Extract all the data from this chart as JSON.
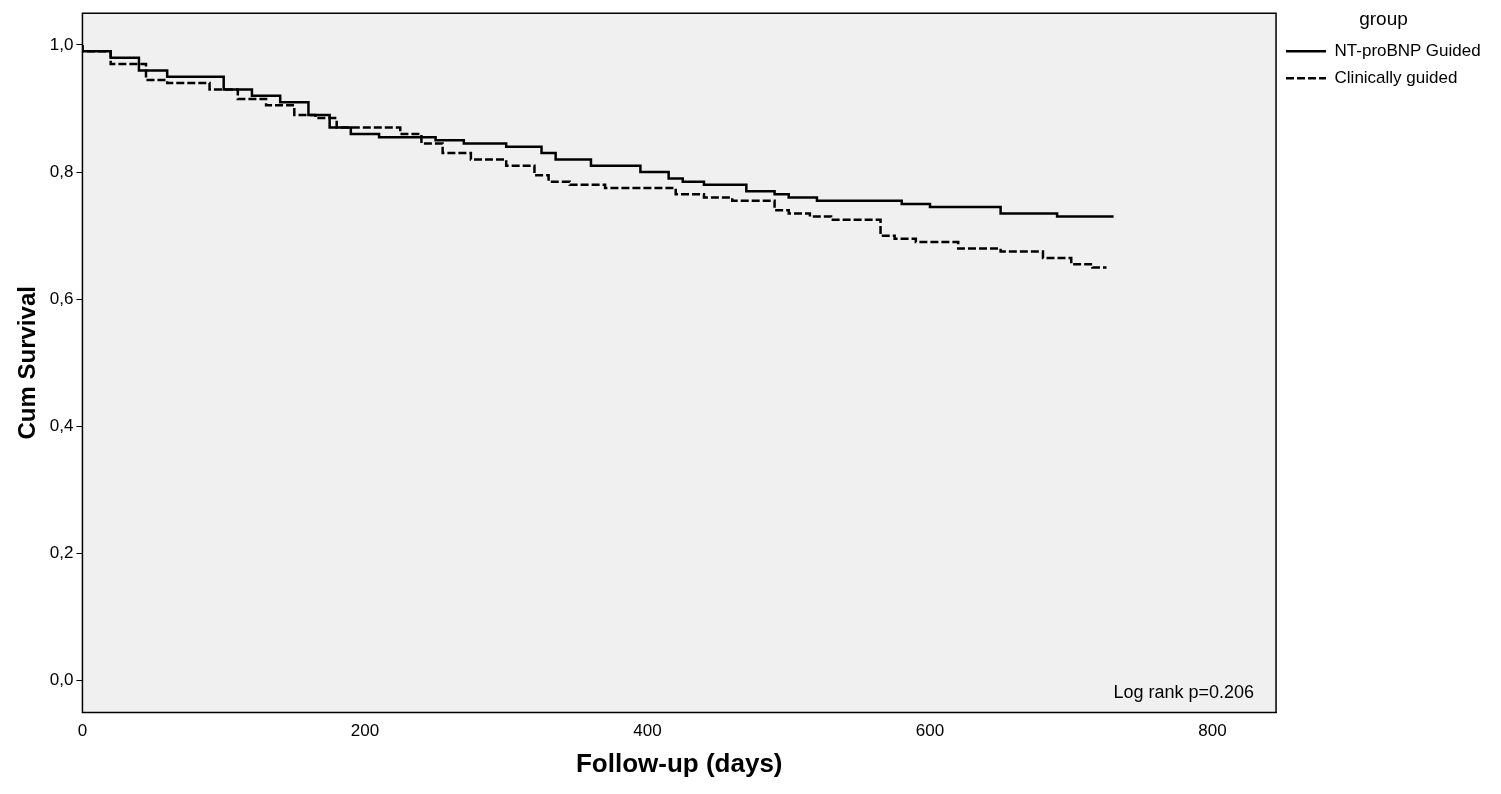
{
  "chart_data": {
    "type": "step",
    "xlabel": "Follow-up (days)",
    "ylabel": "Cum Survival",
    "legend_title": "group",
    "legend": "top right",
    "grid": false,
    "marker": "none",
    "xlim": [
      0,
      845
    ],
    "xticks": [
      0,
      200,
      400,
      600,
      800
    ],
    "ylim": [
      -0.05,
      1.05
    ],
    "yticks": [
      {
        "value": 0,
        "label": "0,0"
      },
      {
        "value": 0.2,
        "label": "0,2"
      },
      {
        "value": 0.4,
        "label": "0,4"
      },
      {
        "value": 0.6,
        "label": "0,6"
      },
      {
        "value": 0.8,
        "label": "0,8"
      },
      {
        "value": 1,
        "label": "1,0"
      }
    ],
    "annotations": [
      "Log rank p=0.206"
    ],
    "series": [
      {
        "name": "NT-proBNP Guided",
        "color": "#000000",
        "line_style": "solid",
        "x": [
          0,
          20,
          40,
          60,
          100,
          120,
          140,
          160,
          175,
          190,
          210,
          250,
          270,
          300,
          325,
          335,
          360,
          395,
          415,
          425,
          440,
          470,
          490,
          500,
          520,
          580,
          600,
          650,
          690,
          705,
          730
        ],
        "values": [
          1.0,
          0.99,
          0.98,
          0.96,
          0.95,
          0.93,
          0.92,
          0.91,
          0.89,
          0.87,
          0.86,
          0.855,
          0.85,
          0.845,
          0.84,
          0.83,
          0.82,
          0.81,
          0.8,
          0.79,
          0.785,
          0.78,
          0.77,
          0.765,
          0.76,
          0.755,
          0.75,
          0.745,
          0.735,
          0.73,
          0.73
        ]
      },
      {
        "name": "Clinically guided",
        "color": "#000000",
        "line_style": "dashed",
        "x": [
          0,
          20,
          45,
          60,
          90,
          110,
          130,
          150,
          165,
          180,
          225,
          240,
          255,
          275,
          300,
          320,
          330,
          345,
          370,
          420,
          440,
          460,
          490,
          500,
          515,
          530,
          565,
          575,
          590,
          620,
          650,
          680,
          700,
          715,
          725
        ],
        "values": [
          1.0,
          0.99,
          0.97,
          0.945,
          0.94,
          0.93,
          0.915,
          0.905,
          0.89,
          0.885,
          0.87,
          0.86,
          0.845,
          0.83,
          0.82,
          0.81,
          0.795,
          0.785,
          0.78,
          0.775,
          0.765,
          0.76,
          0.755,
          0.74,
          0.735,
          0.73,
          0.725,
          0.7,
          0.695,
          0.69,
          0.68,
          0.675,
          0.665,
          0.655,
          0.65
        ]
      }
    ]
  }
}
